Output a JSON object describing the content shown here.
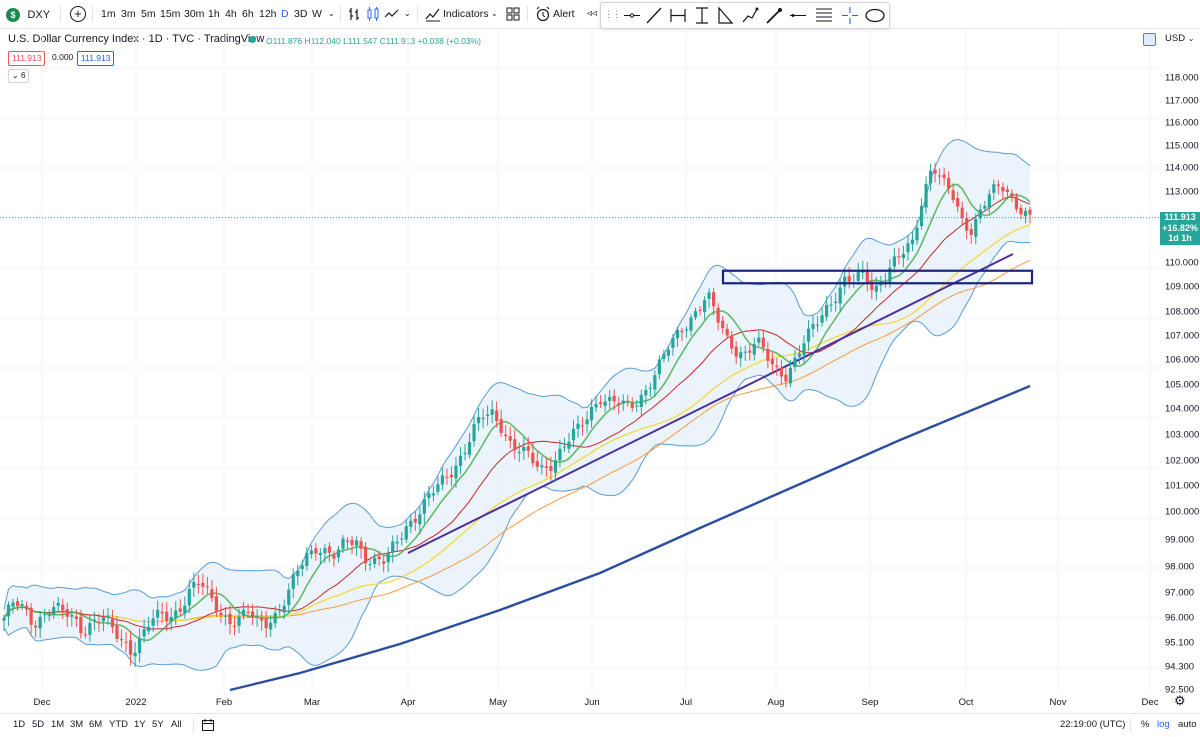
{
  "toolbar": {
    "symbol": "DXY",
    "intervals": [
      "1m",
      "3m",
      "5m",
      "15m",
      "30m",
      "1h",
      "4h",
      "6h",
      "12h",
      "D",
      "3D",
      "W"
    ],
    "active_interval": "D",
    "indicators_label": "Indicators",
    "alert_label": "Alert"
  },
  "legend": {
    "title": "U.S. Dollar Currency Index · 1D · TVC · TradingView",
    "open": "O111.876",
    "high": "H112.040",
    "low": "L111.547",
    "close": "C111.913",
    "change": "+0.038 (+0.03%)",
    "bid": "111.913",
    "spread": "0.000",
    "ask": "111.913",
    "indicator_count": "6"
  },
  "price_axis": {
    "currency": "USD",
    "labels": [
      "118.000",
      "117.000",
      "116.000",
      "115.000",
      "114.000",
      "113.000",
      "110.000",
      "109.000",
      "108.000",
      "107.000",
      "106.000",
      "105.000",
      "104.000",
      "103.000",
      "102.000",
      "101.000",
      "100.000",
      "99.000",
      "98.000",
      "97.000",
      "96.000",
      "95.100",
      "94.300",
      "92.500"
    ],
    "current_price": "111.913",
    "current_change": "+16.82%",
    "current_timer": "1d 1h"
  },
  "time_axis": {
    "labels": [
      "Dec",
      "2022",
      "Feb",
      "Mar",
      "Apr",
      "May",
      "Jun",
      "Jul",
      "Aug",
      "Sep",
      "Oct",
      "Nov",
      "Dec"
    ]
  },
  "bottom": {
    "ranges": [
      "1D",
      "5D",
      "1M",
      "3M",
      "6M",
      "YTD",
      "1Y",
      "5Y",
      "All"
    ],
    "clock": "22:19:00 (UTC)",
    "percent_label": "%",
    "log_label": "log",
    "auto_label": "auto"
  },
  "colors": {
    "up": "#26a69a",
    "down": "#ef5350",
    "accent": "#2962ff",
    "bollinger": "#5b9bd5",
    "ma_green": "#4caf50",
    "ma_red": "#c62828",
    "ma_yellow": "#f2d831",
    "ma_orange": "#f59d42",
    "ma_navy": "#2b4ea0",
    "trendline": "#4a2fa0"
  },
  "chart_data": {
    "type": "candlestick",
    "title": "U.S. Dollar Currency Index · 1D · TVC · TradingView",
    "ylabel": "USD",
    "ylim": [
      92.5,
      118.5
    ],
    "x_ticks": [
      "Dec",
      "2022",
      "Feb",
      "Mar",
      "Apr",
      "May",
      "Jun",
      "Jul",
      "Aug",
      "Sep",
      "Oct",
      "Nov",
      "Dec"
    ],
    "closes": [
      96.0,
      96.5,
      96.3,
      95.9,
      96.2,
      96.4,
      96.1,
      96.0,
      95.7,
      95.9,
      96.0,
      95.5,
      95.2,
      95.0,
      95.3,
      95.8,
      96.0,
      96.1,
      96.5,
      97.1,
      97.3,
      96.8,
      96.4,
      96.0,
      95.9,
      96.1,
      95.8,
      96.0,
      96.3,
      96.8,
      97.7,
      98.4,
      98.9,
      98.6,
      98.3,
      98.8,
      99.0,
      98.5,
      98.2,
      98.1,
      98.7,
      99.5,
      99.9,
      100.3,
      100.7,
      101.2,
      101.8,
      102.4,
      103.1,
      103.6,
      103.8,
      103.4,
      102.6,
      102.3,
      101.9,
      101.7,
      102.0,
      102.4,
      102.8,
      103.2,
      104.0,
      104.6,
      104.3,
      104.1,
      104.0,
      104.5,
      105.1,
      105.7,
      106.4,
      107.1,
      107.7,
      108.2,
      108.6,
      107.6,
      106.9,
      106.5,
      106.3,
      106.7,
      106.1,
      105.7,
      105.5,
      106.0,
      106.7,
      107.4,
      108.2,
      108.7,
      109.2,
      109.1,
      109.6,
      109.0,
      109.4,
      109.9,
      110.3,
      110.9,
      112.9,
      114.2,
      113.3,
      112.8,
      111.9,
      111.5,
      112.3,
      112.8,
      113.2,
      112.9,
      112.4,
      111.9
    ],
    "price_line": 111.913,
    "support_zone": {
      "low": 109.25,
      "high": 109.6
    },
    "series": [
      {
        "name": "close",
        "values": "closes"
      }
    ]
  }
}
